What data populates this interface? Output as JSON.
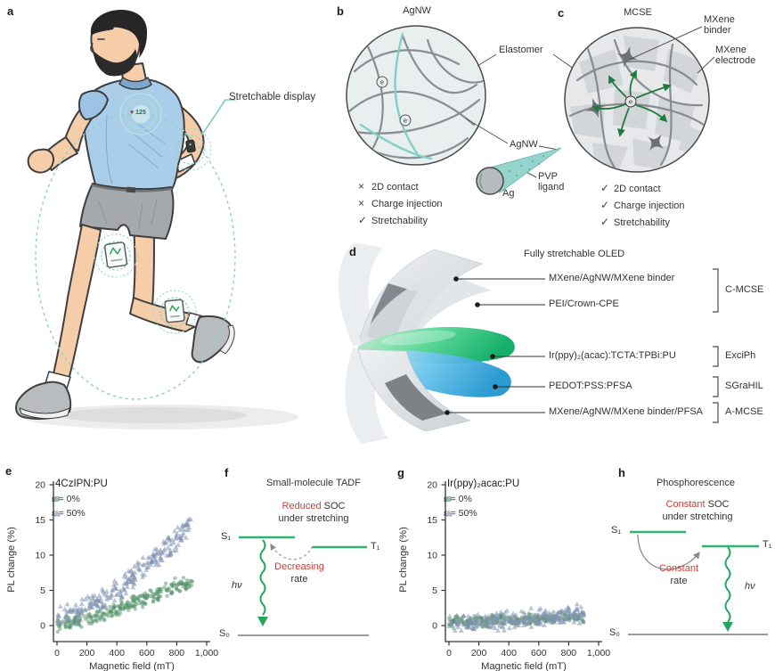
{
  "colors": {
    "accent_teal": "#82cfc6",
    "green_arrow": "#1d7a3c",
    "level_green": "#2db56f",
    "radiative_green": "#2aa55f",
    "warn_red": "#d23b33",
    "scatter_green": "#55936b",
    "scatter_blue": "#8293b3"
  },
  "panels": {
    "a": {
      "letter": "a",
      "callout": "Stretchable display",
      "heart_icon": "♥",
      "heart_rate": "125"
    },
    "b": {
      "letter": "b",
      "title": "AgNW",
      "electron": "e",
      "labels": {
        "elastomer": "Elastomer",
        "agnw": "AgNW",
        "ag": "Ag",
        "pvp_line1": "PVP",
        "pvp_line2": "ligand"
      },
      "checklist": [
        {
          "mark": "×",
          "text": "2D contact"
        },
        {
          "mark": "×",
          "text": "Charge injection"
        },
        {
          "mark": "✓",
          "text": "Stretchability"
        }
      ]
    },
    "c": {
      "letter": "c",
      "title": "MCSE",
      "electron": "e",
      "labels": {
        "binder_line1": "MXene",
        "binder_line2": "binder",
        "electrode_line1": "MXene",
        "electrode_line2": "electrode"
      },
      "checklist": [
        {
          "mark": "✓",
          "text": "2D contact"
        },
        {
          "mark": "✓",
          "text": "Charge injection"
        },
        {
          "mark": "✓",
          "text": "Stretchability"
        }
      ]
    },
    "d": {
      "letter": "d",
      "title": "Fully stretchable OLED",
      "layers": [
        {
          "label": "MXene/AgNW/MXene binder"
        },
        {
          "label": "PEI/Crown-CPE"
        },
        {
          "label": "Ir(ppy)₂(acac):TCTA:TPBi:PU"
        },
        {
          "label": "PEDOT:PSS:PFSA"
        },
        {
          "label": "MXene/AgNW/MXene binder/PFSA"
        }
      ],
      "bracket_labels": [
        "C-MCSE",
        "ExciPh",
        "SGraHIL",
        "A-MCSE"
      ]
    },
    "f": {
      "letter": "f",
      "title": "Small-molecule TADF",
      "annotation_red": "Reduced",
      "annotation_rest": " SOC",
      "annotation_line2": "under stretching",
      "rate_red": "Decreasing",
      "rate_line2": "rate",
      "s1": "S₁",
      "t1": "T₁",
      "s0": "S₀",
      "photon": "hν"
    },
    "h": {
      "letter": "h",
      "title": "Phosphorescence",
      "annotation_red": "Constant",
      "annotation_rest": " SOC",
      "annotation_line2": "under stretching",
      "rate_red": "Constant",
      "rate_line2": "rate",
      "s1": "S₁",
      "t1": "T₁",
      "s0": "S₀",
      "photon": "hν"
    }
  },
  "chart_data": [
    {
      "panel": "e",
      "type": "scatter",
      "title": "4CzIPN:PU",
      "xlabel": "Magnetic field (mT)",
      "ylabel": "PL change (%)",
      "xlim": [
        0,
        1000
      ],
      "ylim": [
        -2.3,
        20
      ],
      "xticks": [
        0,
        200,
        400,
        600,
        800,
        1000
      ],
      "xtick_labels": [
        "0",
        "200",
        "400",
        "600",
        "800",
        "1,000"
      ],
      "yticks": [
        0,
        5,
        10,
        15,
        20
      ],
      "legend": [
        "ε = 0%",
        "ε = 50%"
      ],
      "series": [
        {
          "name": "ε = 0%",
          "marker": "circle",
          "color": "#55936b",
          "opacity": 0.5,
          "n": 270,
          "noise": 0.75,
          "seed": 11,
          "clip_min": -1.3,
          "trend": [
            [
              0,
              0.2
            ],
            [
              100,
              0.6
            ],
            [
              200,
              1.1
            ],
            [
              300,
              1.7
            ],
            [
              400,
              2.3
            ],
            [
              500,
              3.1
            ],
            [
              600,
              3.9
            ],
            [
              700,
              4.9
            ],
            [
              800,
              5.7
            ],
            [
              900,
              6.4
            ]
          ]
        },
        {
          "name": "ε = 50%",
          "marker": "triangle",
          "color": "#8293b3",
          "opacity": 0.55,
          "n": 250,
          "noise": 1.1,
          "seed": 7,
          "clip_min": -0.8,
          "trend": [
            [
              0,
              1.2
            ],
            [
              100,
              1.9
            ],
            [
              200,
              2.6
            ],
            [
              300,
              3.6
            ],
            [
              400,
              4.9
            ],
            [
              500,
              6.6
            ],
            [
              600,
              8.5
            ],
            [
              700,
              10.4
            ],
            [
              800,
              12.4
            ],
            [
              900,
              14.6
            ]
          ]
        }
      ]
    },
    {
      "panel": "g",
      "type": "scatter",
      "title": "Ir(ppy)₂acac:PU",
      "xlabel": "Magnetic field (mT)",
      "ylabel": "PL change (%)",
      "xlim": [
        0,
        1000
      ],
      "ylim": [
        -2.3,
        20
      ],
      "xticks": [
        0,
        200,
        400,
        600,
        800,
        1000
      ],
      "xtick_labels": [
        "0",
        "200",
        "400",
        "600",
        "800",
        "1,000"
      ],
      "yticks": [
        0,
        5,
        10,
        15,
        20
      ],
      "legend": [
        "ε = 0%",
        "ε = 50%"
      ],
      "series": [
        {
          "name": "ε = 0%",
          "marker": "circle",
          "color": "#55936b",
          "opacity": 0.5,
          "n": 270,
          "noise": 0.6,
          "seed": 5,
          "clip_min": -1.2,
          "trend": [
            [
              0,
              0.5
            ],
            [
              150,
              0.55
            ],
            [
              300,
              0.7
            ],
            [
              450,
              0.8
            ],
            [
              600,
              1.0
            ],
            [
              750,
              1.1
            ],
            [
              900,
              1.2
            ]
          ]
        },
        {
          "name": "ε = 50%",
          "marker": "triangle",
          "color": "#8293b3",
          "opacity": 0.55,
          "n": 240,
          "noise": 0.95,
          "seed": 9,
          "clip_min": -2.2,
          "trend": [
            [
              0,
              0.3
            ],
            [
              150,
              0.4
            ],
            [
              300,
              0.6
            ],
            [
              450,
              0.8
            ],
            [
              600,
              1.1
            ],
            [
              750,
              1.4
            ],
            [
              900,
              1.7
            ]
          ]
        }
      ]
    }
  ]
}
